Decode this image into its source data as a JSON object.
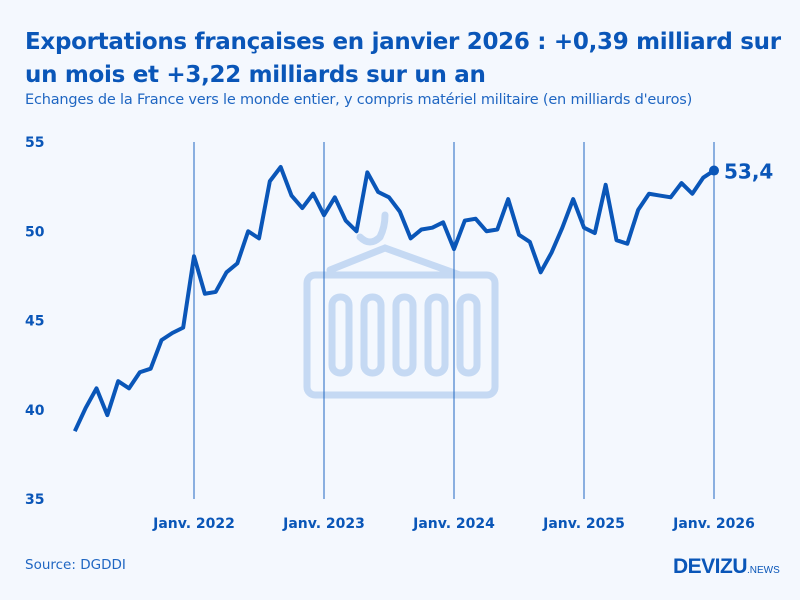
{
  "header": {
    "title": "Exportations françaises en janvier 2026 : +0,39 milliard sur un mois et +3,22 milliards sur un an",
    "subtitle": "Echanges de la France vers le monde entier, y compris matériel militaire (en milliards d'euros)"
  },
  "footer": {
    "source": "Source: DGDDI",
    "logo_main": "DEVIZU",
    "logo_suffix": ".NEWS"
  },
  "colors": {
    "line": "#0a56b8",
    "background": "#f4f8fe",
    "watermark": "#c5d9f3"
  },
  "watermark_icon": "shipping-container-icon",
  "chart_data": {
    "type": "line",
    "title": "Exportations françaises en janvier 2026 : +0,39 milliard sur un mois et +3,22 milliards sur un an",
    "subtitle": "Echanges de la France vers le monde entier, y compris matériel militaire (en milliards d'euros)",
    "ylim": [
      35,
      55
    ],
    "yticks": [
      "35",
      "40",
      "45",
      "50",
      "55"
    ],
    "xticks": [
      "Janv. 2022",
      "Janv. 2023",
      "Janv. 2024",
      "Janv. 2025",
      "Janv. 2026"
    ],
    "grid": "vertical lines at each January",
    "x_start": "2021-02",
    "x_end": "2026-01",
    "end_label": "53,4",
    "values": [
      38.8,
      40.1,
      41.2,
      39.7,
      41.6,
      41.2,
      42.1,
      42.3,
      43.9,
      44.3,
      44.6,
      48.6,
      46.5,
      46.6,
      47.7,
      48.2,
      50.0,
      49.6,
      52.8,
      53.6,
      52.0,
      51.3,
      52.1,
      50.9,
      51.9,
      50.6,
      50.0,
      53.3,
      52.2,
      51.9,
      51.1,
      49.6,
      50.1,
      50.2,
      50.5,
      49.0,
      50.6,
      50.7,
      50.0,
      50.1,
      51.8,
      49.8,
      49.4,
      47.7,
      48.8,
      50.2,
      51.8,
      50.2,
      49.9,
      52.6,
      49.5,
      49.3,
      51.2,
      52.1,
      52.0,
      51.9,
      52.7,
      52.1,
      53.0,
      53.4
    ]
  }
}
